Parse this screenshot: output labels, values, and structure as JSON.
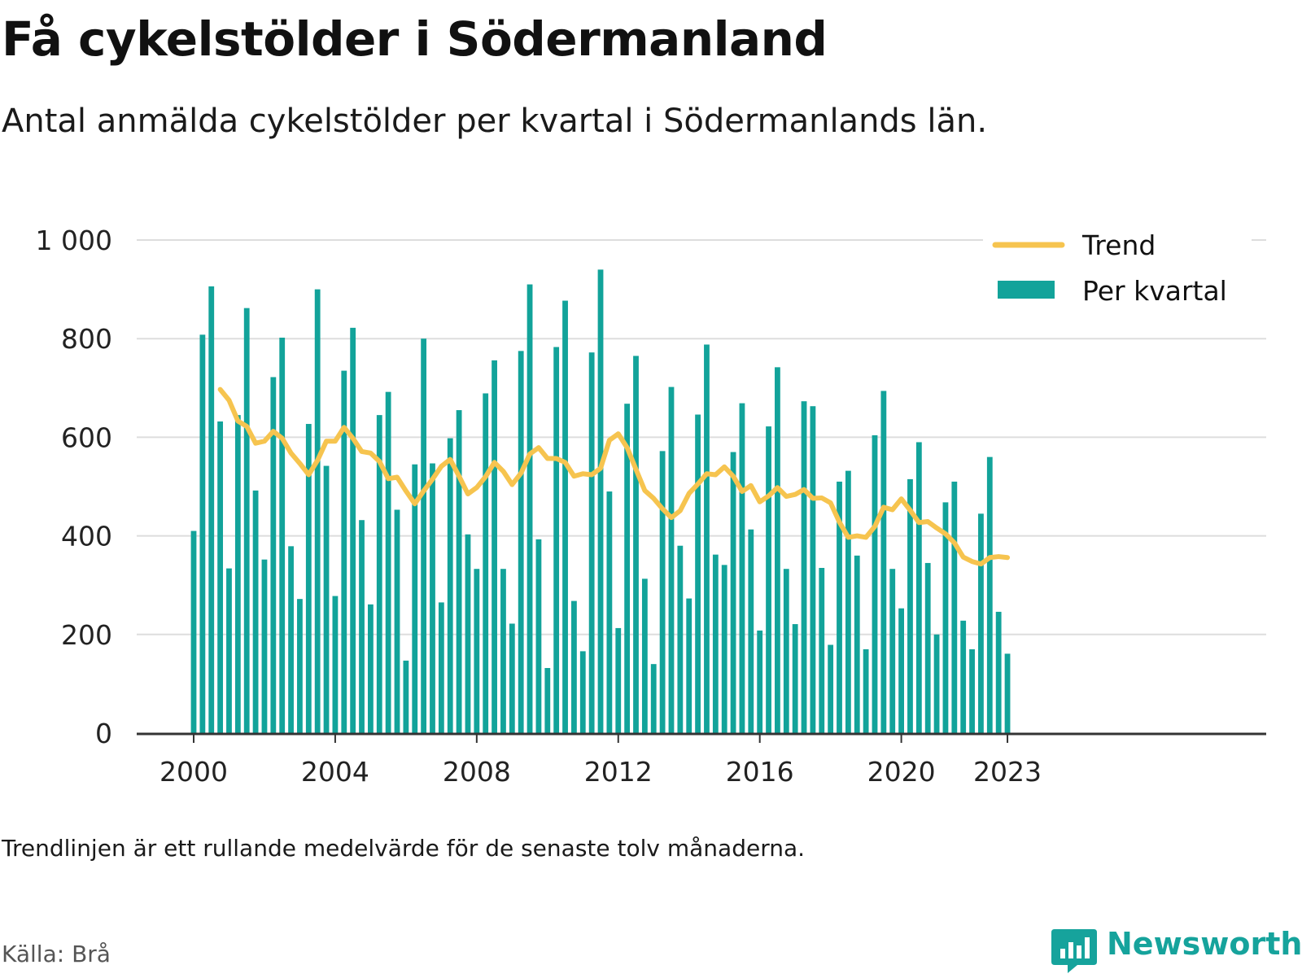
{
  "title": "Få cykelstölder i Södermanland",
  "subtitle": "Antal anmälda cykelstölder per kvartal i Södermanlands län.",
  "footnote": "Trendlinjen är ett rullande medelvärde för de senaste tolv månaderna.",
  "source": "Källa: Brå",
  "brand": {
    "name": "Newsworthy",
    "icon": "newsworthy-logo-icon"
  },
  "colors": {
    "bars": "#12a39a",
    "trend": "#f6c44f",
    "grid": "#dddddd",
    "axis": "#333333",
    "brand": "#16a39c"
  },
  "chart_data": {
    "type": "bar",
    "ylim": [
      0,
      1000
    ],
    "yticks": [
      0,
      200,
      400,
      600,
      800,
      1000
    ],
    "ytick_labels": [
      "0",
      "200",
      "400",
      "600",
      "800",
      "1 000"
    ],
    "xticks": [
      2000,
      2004,
      2008,
      2012,
      2016,
      2020,
      2023
    ],
    "xtick_labels": [
      "2000",
      "2004",
      "2008",
      "2012",
      "2016",
      "2020",
      "2023"
    ],
    "grid": true,
    "legend_position": "top-right",
    "categories": [
      "2000 K1",
      "2000 K2",
      "2000 K3",
      "2000 K4",
      "2001 K1",
      "2001 K2",
      "2001 K3",
      "2001 K4",
      "2002 K1",
      "2002 K2",
      "2002 K3",
      "2002 K4",
      "2003 K1",
      "2003 K2",
      "2003 K3",
      "2003 K4",
      "2004 K1",
      "2004 K2",
      "2004 K3",
      "2004 K4",
      "2005 K1",
      "2005 K2",
      "2005 K3",
      "2005 K4",
      "2006 K1",
      "2006 K2",
      "2006 K3",
      "2006 K4",
      "2007 K1",
      "2007 K2",
      "2007 K3",
      "2007 K4",
      "2008 K1",
      "2008 K2",
      "2008 K3",
      "2008 K4",
      "2009 K1",
      "2009 K2",
      "2009 K3",
      "2009 K4",
      "2010 K1",
      "2010 K2",
      "2010 K3",
      "2010 K4",
      "2011 K1",
      "2011 K2",
      "2011 K3",
      "2011 K4",
      "2012 K1",
      "2012 K2",
      "2012 K3",
      "2012 K4",
      "2013 K1",
      "2013 K2",
      "2013 K3",
      "2013 K4",
      "2014 K1",
      "2014 K2",
      "2014 K3",
      "2014 K4",
      "2015 K1",
      "2015 K2",
      "2015 K3",
      "2015 K4",
      "2016 K1",
      "2016 K2",
      "2016 K3",
      "2016 K4",
      "2017 K1",
      "2017 K2",
      "2017 K3",
      "2017 K4",
      "2018 K1",
      "2018 K2",
      "2018 K3",
      "2018 K4",
      "2019 K1",
      "2019 K2",
      "2019 K3",
      "2019 K4",
      "2020 K1",
      "2020 K2",
      "2020 K3",
      "2020 K4",
      "2021 K1",
      "2021 K2",
      "2021 K3",
      "2021 K4",
      "2022 K1",
      "2022 K2",
      "2022 K3",
      "2022 K4",
      "2023 K1"
    ],
    "series": [
      {
        "name": "Per kvartal",
        "type": "bar",
        "values": [
          410,
          808,
          906,
          632,
          334,
          645,
          862,
          492,
          352,
          722,
          802,
          379,
          272,
          627,
          900,
          542,
          278,
          735,
          822,
          432,
          261,
          645,
          692,
          453,
          147,
          545,
          800,
          547,
          265,
          598,
          655,
          403,
          333,
          689,
          756,
          333,
          222,
          775,
          910,
          393,
          132,
          783,
          877,
          268,
          166,
          772,
          940,
          490,
          213,
          668,
          765,
          313,
          140,
          572,
          702,
          380,
          273,
          646,
          788,
          362,
          341,
          570,
          669,
          413,
          208,
          622,
          742,
          333,
          221,
          673,
          663,
          335,
          179,
          510,
          532,
          360,
          170,
          604,
          694,
          333,
          253,
          515,
          590,
          345,
          200,
          468,
          510,
          228,
          170,
          445,
          560,
          246,
          161
        ]
      },
      {
        "name": "Trend",
        "type": "line",
        "values": [
          null,
          null,
          null,
          697,
          675,
          633,
          622,
          588,
          592,
          612,
          598,
          568,
          547,
          524,
          553,
          592,
          592,
          620,
          598,
          571,
          568,
          551,
          516,
          519,
          491,
          465,
          491,
          515,
          541,
          555,
          521,
          485,
          498,
          520,
          549,
          531,
          504,
          527,
          566,
          579,
          557,
          557,
          549,
          521,
          526,
          524,
          537,
          594,
          607,
          579,
          535,
          492,
          476,
          455,
          437,
          451,
          486,
          505,
          526,
          524,
          540,
          521,
          490,
          502,
          469,
          481,
          498,
          480,
          484,
          494,
          476,
          477,
          467,
          428,
          397,
          400,
          397,
          419,
          458,
          453,
          475,
          452,
          427,
          429,
          416,
          404,
          386,
          357,
          348,
          343,
          356,
          358,
          356
        ]
      }
    ]
  }
}
